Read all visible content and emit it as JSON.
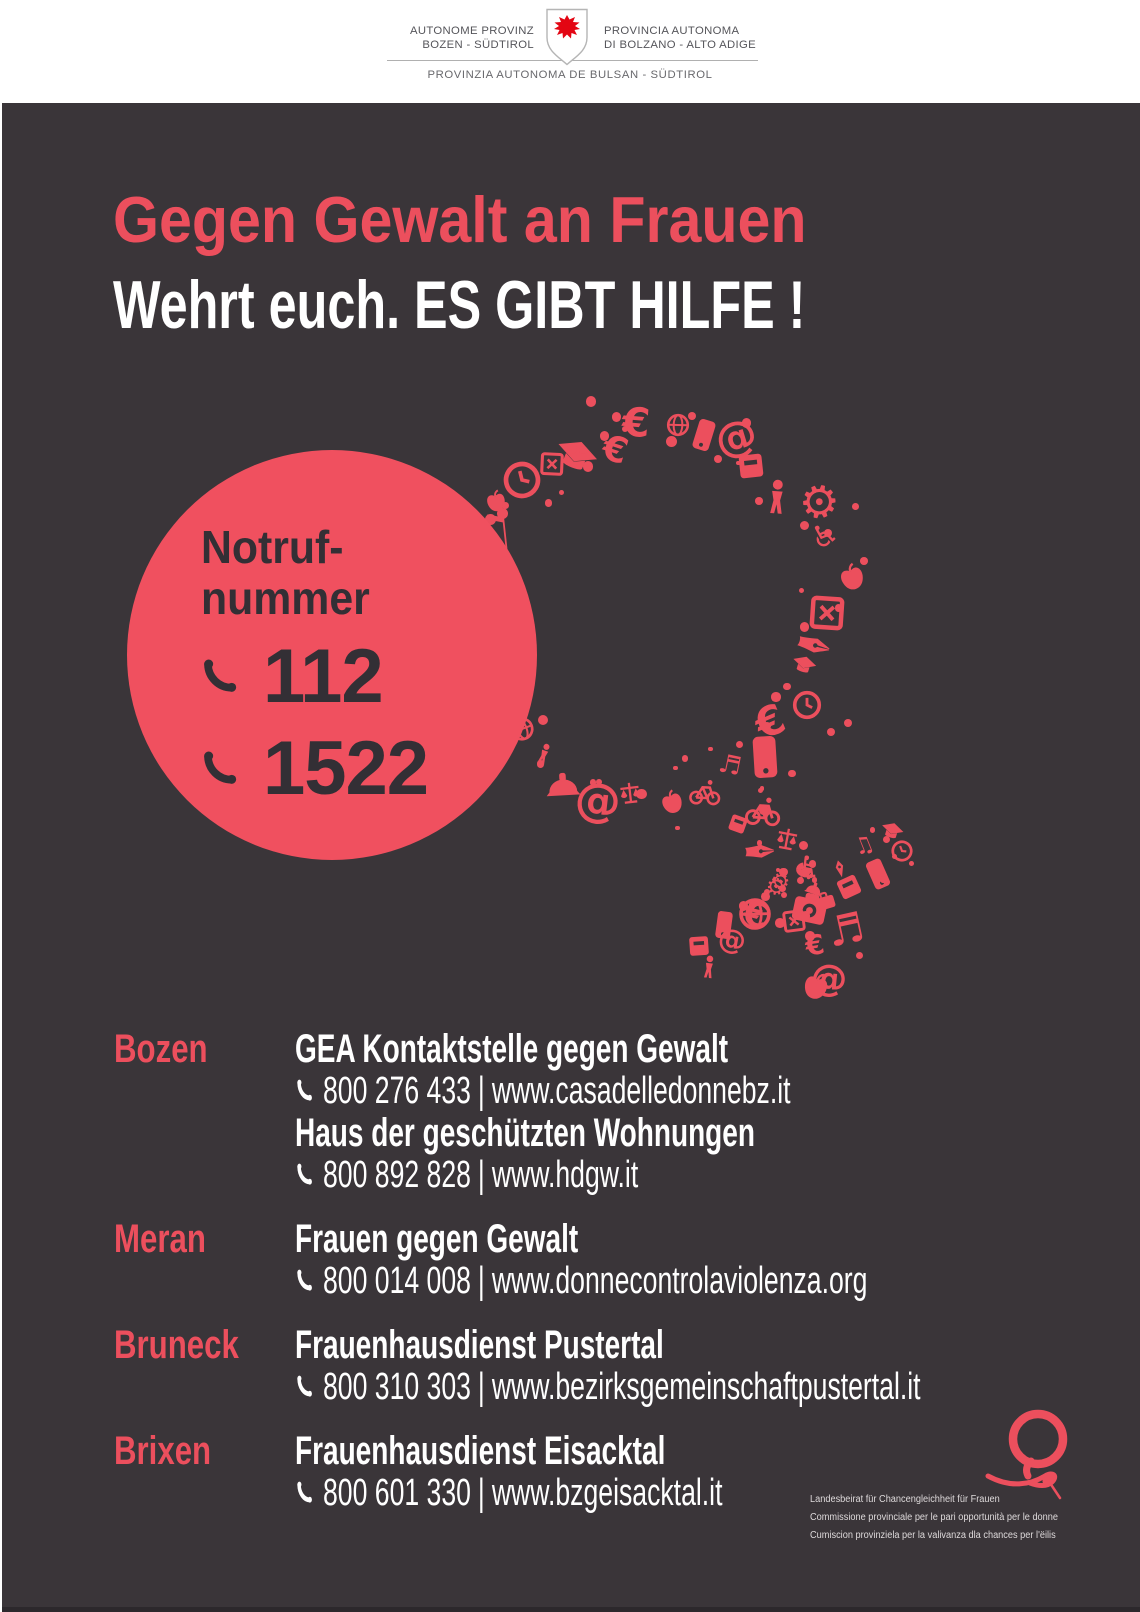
{
  "colors": {
    "background": "#3a3539",
    "accent_red": "#ec4f5d",
    "circle_red": "#f0505f",
    "dark_text_on_red": "#332f35",
    "white": "#ffffff",
    "eagle_red": "#e30613",
    "header_text": "#55555a"
  },
  "header": {
    "left_line1": "AUTONOME PROVINZ",
    "left_line2": "BOZEN - SÜDTIROL",
    "right_line1": "PROVINCIA  AUTONOMA",
    "right_line2": "DI BOLZANO - ALTO ADIGE",
    "bottom": "PROVINZIA AUTONOMA DE BULSAN - SÜDTIROL",
    "coat_of_arms": "south-tyrol-eagle-shield"
  },
  "poster": {
    "title_line1": "Gegen Gewalt an Frauen",
    "title_line2": "Wehrt euch. ES GIBT HILFE !",
    "emergency": {
      "label_line1": "Notruf-",
      "label_line2": "nummer",
      "numbers": [
        "112",
        "1522"
      ]
    },
    "mosaic_icons": [
      "euro-sign",
      "globe",
      "smartphone",
      "at-sign",
      "book",
      "person",
      "gear",
      "wheelchair",
      "apple",
      "ballot-cross",
      "fountain-pen",
      "graduation-cap",
      "clock",
      "euro-sign",
      "smartphone",
      "treble-clef",
      "bicycle",
      "apple",
      "scales-of-justice",
      "at-sign",
      "hard-hat",
      "person",
      "globe",
      "briefcase",
      "camera",
      "at-sign",
      "pram",
      "gear",
      "music-note",
      "apple",
      "clock",
      "ballot-cross",
      "graduation-cap",
      "euro-sign",
      "book",
      "bicycle",
      "fountain-pen",
      "scales-of-justice",
      "gear",
      "wheelchair",
      "camera",
      "briefcase",
      "treble-clef",
      "euro-sign",
      "at-sign",
      "apple",
      "clock",
      "graduation-cap",
      "music-note",
      "smartphone",
      "pen-nib",
      "book",
      "pram",
      "hard-hat",
      "ballot-cross",
      "gear"
    ],
    "separator": "|",
    "contacts": [
      {
        "city": "Bozen",
        "entries": [
          {
            "name": "GEA Kontaktstelle gegen Gewalt",
            "phone": "800 276 433",
            "website": "www.casadelledonnebz.it"
          },
          {
            "name": "Haus der geschützten Wohnungen",
            "phone": "800 892 828",
            "website": "www.hdgw.it"
          }
        ]
      },
      {
        "city": "Meran",
        "entries": [
          {
            "name": "Frauen gegen Gewalt",
            "phone": "800 014 008",
            "website": "www.donnecontrolaviolenza.org"
          }
        ]
      },
      {
        "city": "Bruneck",
        "entries": [
          {
            "name": "Frauenhausdienst Pustertal",
            "phone": "800 310 303",
            "website": "www.bezirksgemeinschaftpustertal.it"
          }
        ]
      },
      {
        "city": "Brixen",
        "entries": [
          {
            "name": "Frauenhausdienst Eisacktal",
            "phone": "800 601 330",
            "website": "www.bzgeisacktal.it"
          }
        ]
      }
    ],
    "footer": {
      "logo": "equal-opportunities-female-symbol-logo",
      "lines": [
        "Landesbeirat für Chancengleichheit für Frauen",
        "Commissione provinciale per le pari opportunità per le donne",
        "Cumiscion provinziela per la valivanza dla chances per l'ëilis"
      ]
    }
  }
}
